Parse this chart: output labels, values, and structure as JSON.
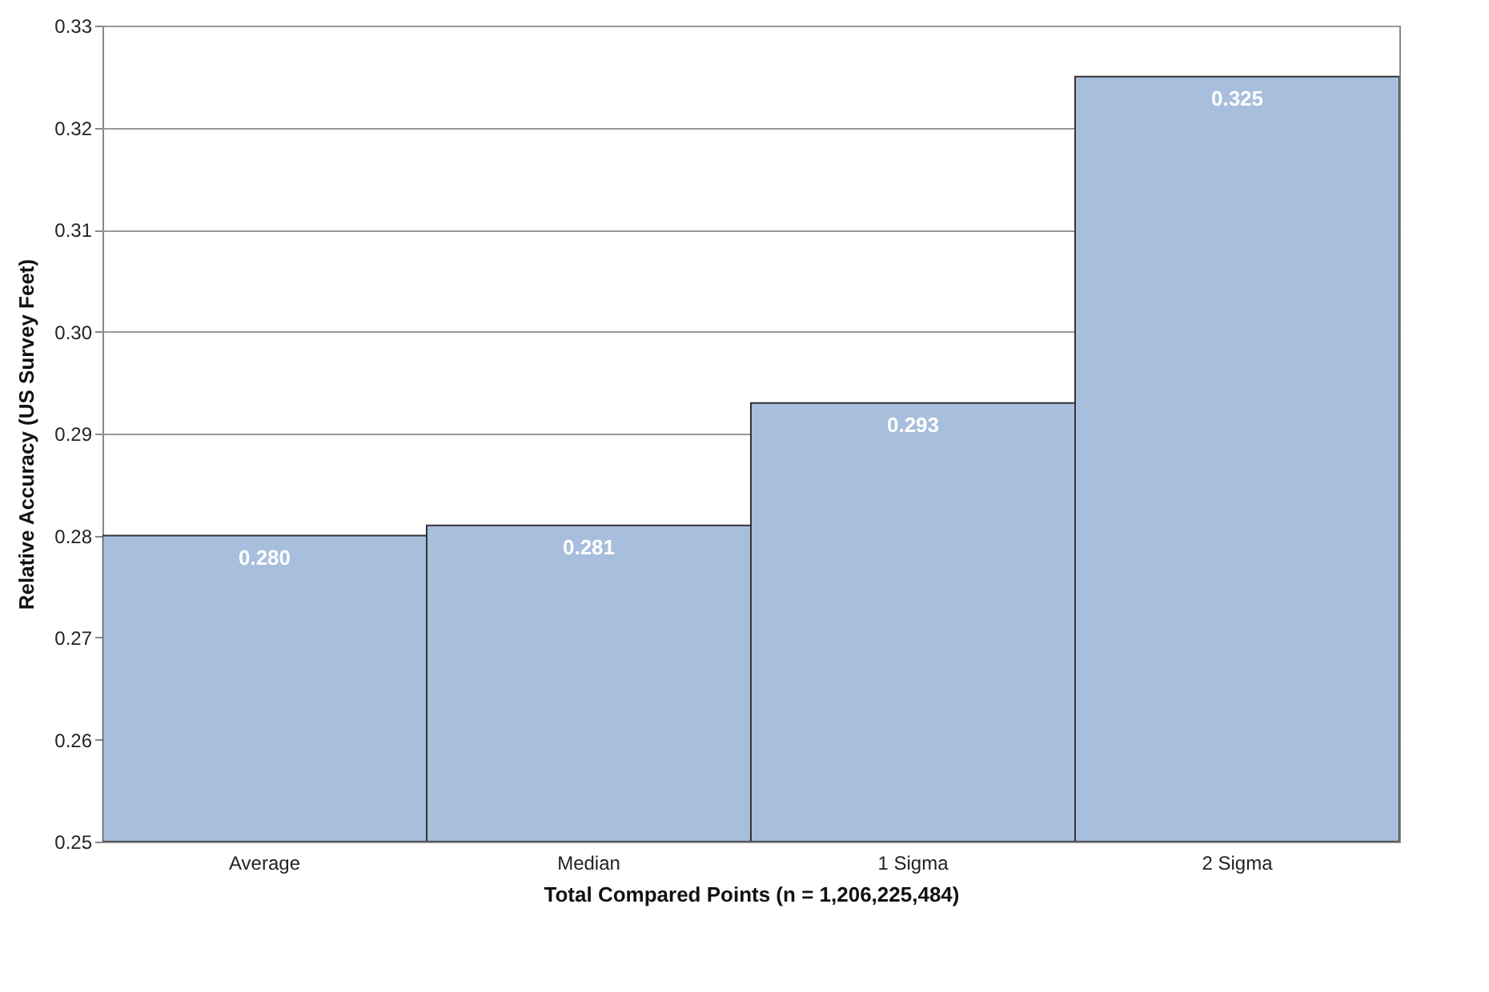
{
  "chart_data": {
    "type": "bar",
    "xlabel": "Total Compared Points (n = 1,206,225,484)",
    "ylabel": "Relative Accuracy (US Survey Feet)",
    "categories": [
      "Average",
      "Median",
      "1 Sigma",
      "2 Sigma"
    ],
    "values": [
      0.28,
      0.281,
      0.293,
      0.325
    ],
    "value_labels": [
      "0.280",
      "0.281",
      "0.293",
      "0.325"
    ],
    "color": "#a7bedc",
    "ylim": [
      0.25,
      0.33
    ],
    "yticks": [
      {
        "value": 0.25,
        "label": "0.25"
      },
      {
        "value": 0.26,
        "label": "0.26"
      },
      {
        "value": 0.27,
        "label": "0.27"
      },
      {
        "value": 0.28,
        "label": "0.28"
      },
      {
        "value": 0.29,
        "label": "0.29"
      },
      {
        "value": 0.3,
        "label": "0.30"
      },
      {
        "value": 0.31,
        "label": "0.31"
      },
      {
        "value": 0.32,
        "label": "0.32"
      },
      {
        "value": 0.33,
        "label": "0.33"
      }
    ],
    "grid": "y"
  }
}
